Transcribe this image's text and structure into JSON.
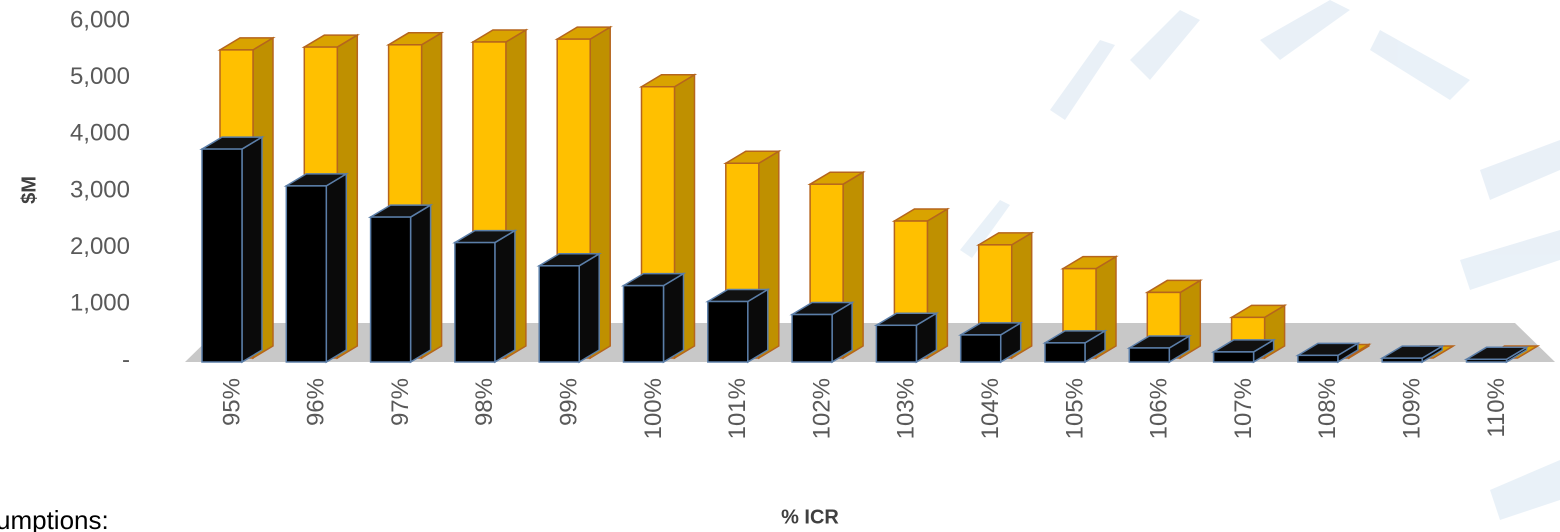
{
  "chart_data": {
    "type": "bar3d",
    "x_label": "% ICR",
    "y_label": "$M",
    "categories": [
      "95%",
      "96%",
      "97%",
      "98%",
      "99%",
      "100%",
      "101%",
      "102%",
      "103%",
      "104%",
      "105%",
      "106%",
      "107%",
      "108%",
      "109%",
      "110%"
    ],
    "series": [
      {
        "color": "#ffc000",
        "values": [
          5490,
          5540,
          5580,
          5630,
          5680,
          4840,
          3490,
          3120,
          2470,
          2050,
          1630,
          1210,
          770,
          80,
          50,
          30
        ]
      },
      {
        "color": "#000000",
        "values": [
          3740,
          3090,
          2540,
          2090,
          1680,
          1330,
          1050,
          820,
          630,
          460,
          320,
          230,
          160,
          100,
          50,
          30
        ]
      }
    ],
    "ylim": [
      0,
      6000
    ],
    "yticks": [
      {
        "value": 0,
        "label": "-"
      },
      {
        "value": 1000,
        "label": "1,000"
      },
      {
        "value": 2000,
        "label": "2,000"
      },
      {
        "value": 3000,
        "label": "3,000"
      },
      {
        "value": 4000,
        "label": "4,000"
      },
      {
        "value": 5000,
        "label": "5,000"
      },
      {
        "value": 6000,
        "label": "6,000"
      }
    ]
  },
  "footer_text": "umptions:"
}
